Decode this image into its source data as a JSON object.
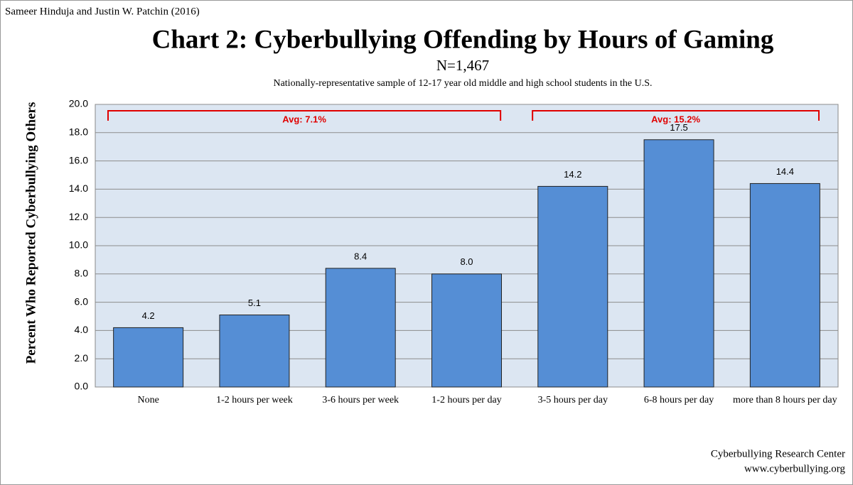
{
  "chart_data": {
    "type": "bar",
    "source": "Sameer Hinduja and Justin W. Patchin (2016)",
    "title": "Chart 2: Cyberbullying Offending by Hours of Gaming",
    "subtitle": "N=1,467",
    "note": "Nationally-representative sample of 12-17 year old middle and high school students in the U.S.",
    "y_label": "Percent Who Reported Cyberbullying Others",
    "categories": [
      "None",
      "1-2 hours per week",
      "3-6 hours per week",
      "1-2 hours per day",
      "3-5 hours per day",
      "6-8 hours per day",
      "more than 8 hours per day"
    ],
    "values": [
      4.2,
      5.1,
      8.4,
      8,
      14.2,
      17.5,
      14.4
    ],
    "value_labels": [
      "4.2",
      "5.1",
      "8.4",
      "8.0",
      "14.2",
      "17.5",
      "14.4"
    ],
    "color": "#558ed5",
    "ylim": [
      0,
      20
    ],
    "yticks": [
      {
        "value": 0,
        "label": "0.0"
      },
      {
        "value": 2,
        "label": "2.0"
      },
      {
        "value": 4,
        "label": "4.0"
      },
      {
        "value": 6,
        "label": "6.0"
      },
      {
        "value": 8,
        "label": "8.0"
      },
      {
        "value": 10,
        "label": "10.0"
      },
      {
        "value": 12,
        "label": "12.0"
      },
      {
        "value": 14,
        "label": "14.0"
      },
      {
        "value": 16,
        "label": "16.0"
      },
      {
        "value": 18,
        "label": "18.0"
      },
      {
        "value": 20,
        "label": "20.0"
      }
    ],
    "grid": true,
    "annotations": [
      {
        "text": "Avg: 7.1%",
        "span": [
          "None",
          "1-2 hours per day"
        ]
      },
      {
        "text": "Avg: 15.2%",
        "span": [
          "3-5 hours per day",
          "more than 8 hours per day"
        ]
      }
    ],
    "footer": [
      "Cyberbullying Research Center",
      "www.cyberbullying.org"
    ]
  }
}
